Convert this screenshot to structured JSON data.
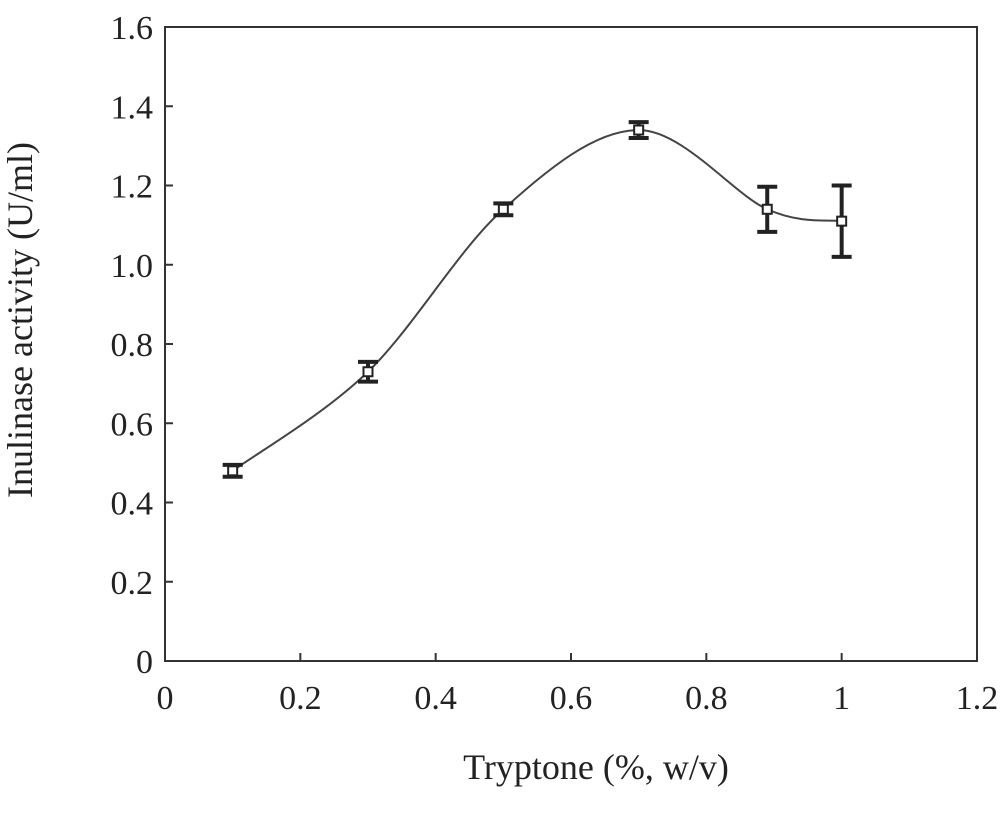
{
  "chart_data": {
    "type": "line",
    "title": "",
    "xlabel": "Tryptone (%, w/v)",
    "ylabel": "Inulinase activity (U/ml)",
    "xlim": [
      0,
      1.2
    ],
    "ylim": [
      0,
      1.6
    ],
    "xticks": [
      "0",
      "0.2",
      "0.4",
      "0.6",
      "0.8",
      "1",
      "1.2"
    ],
    "yticks": [
      "0",
      "0.2",
      "0.4",
      "0.6",
      "0.8",
      "1.0",
      "1.2",
      "1.4",
      "1.6"
    ],
    "grid": false,
    "smooth": true,
    "marker": "open-square",
    "color": "#333333",
    "series": [
      {
        "x": [
          0.1,
          0.3,
          0.5,
          0.7,
          0.89,
          1.0
        ],
        "y": [
          0.48,
          0.73,
          1.14,
          1.34,
          1.14,
          1.11
        ],
        "error": [
          0.015,
          0.025,
          0.015,
          0.02,
          0.057,
          0.09
        ]
      }
    ]
  }
}
